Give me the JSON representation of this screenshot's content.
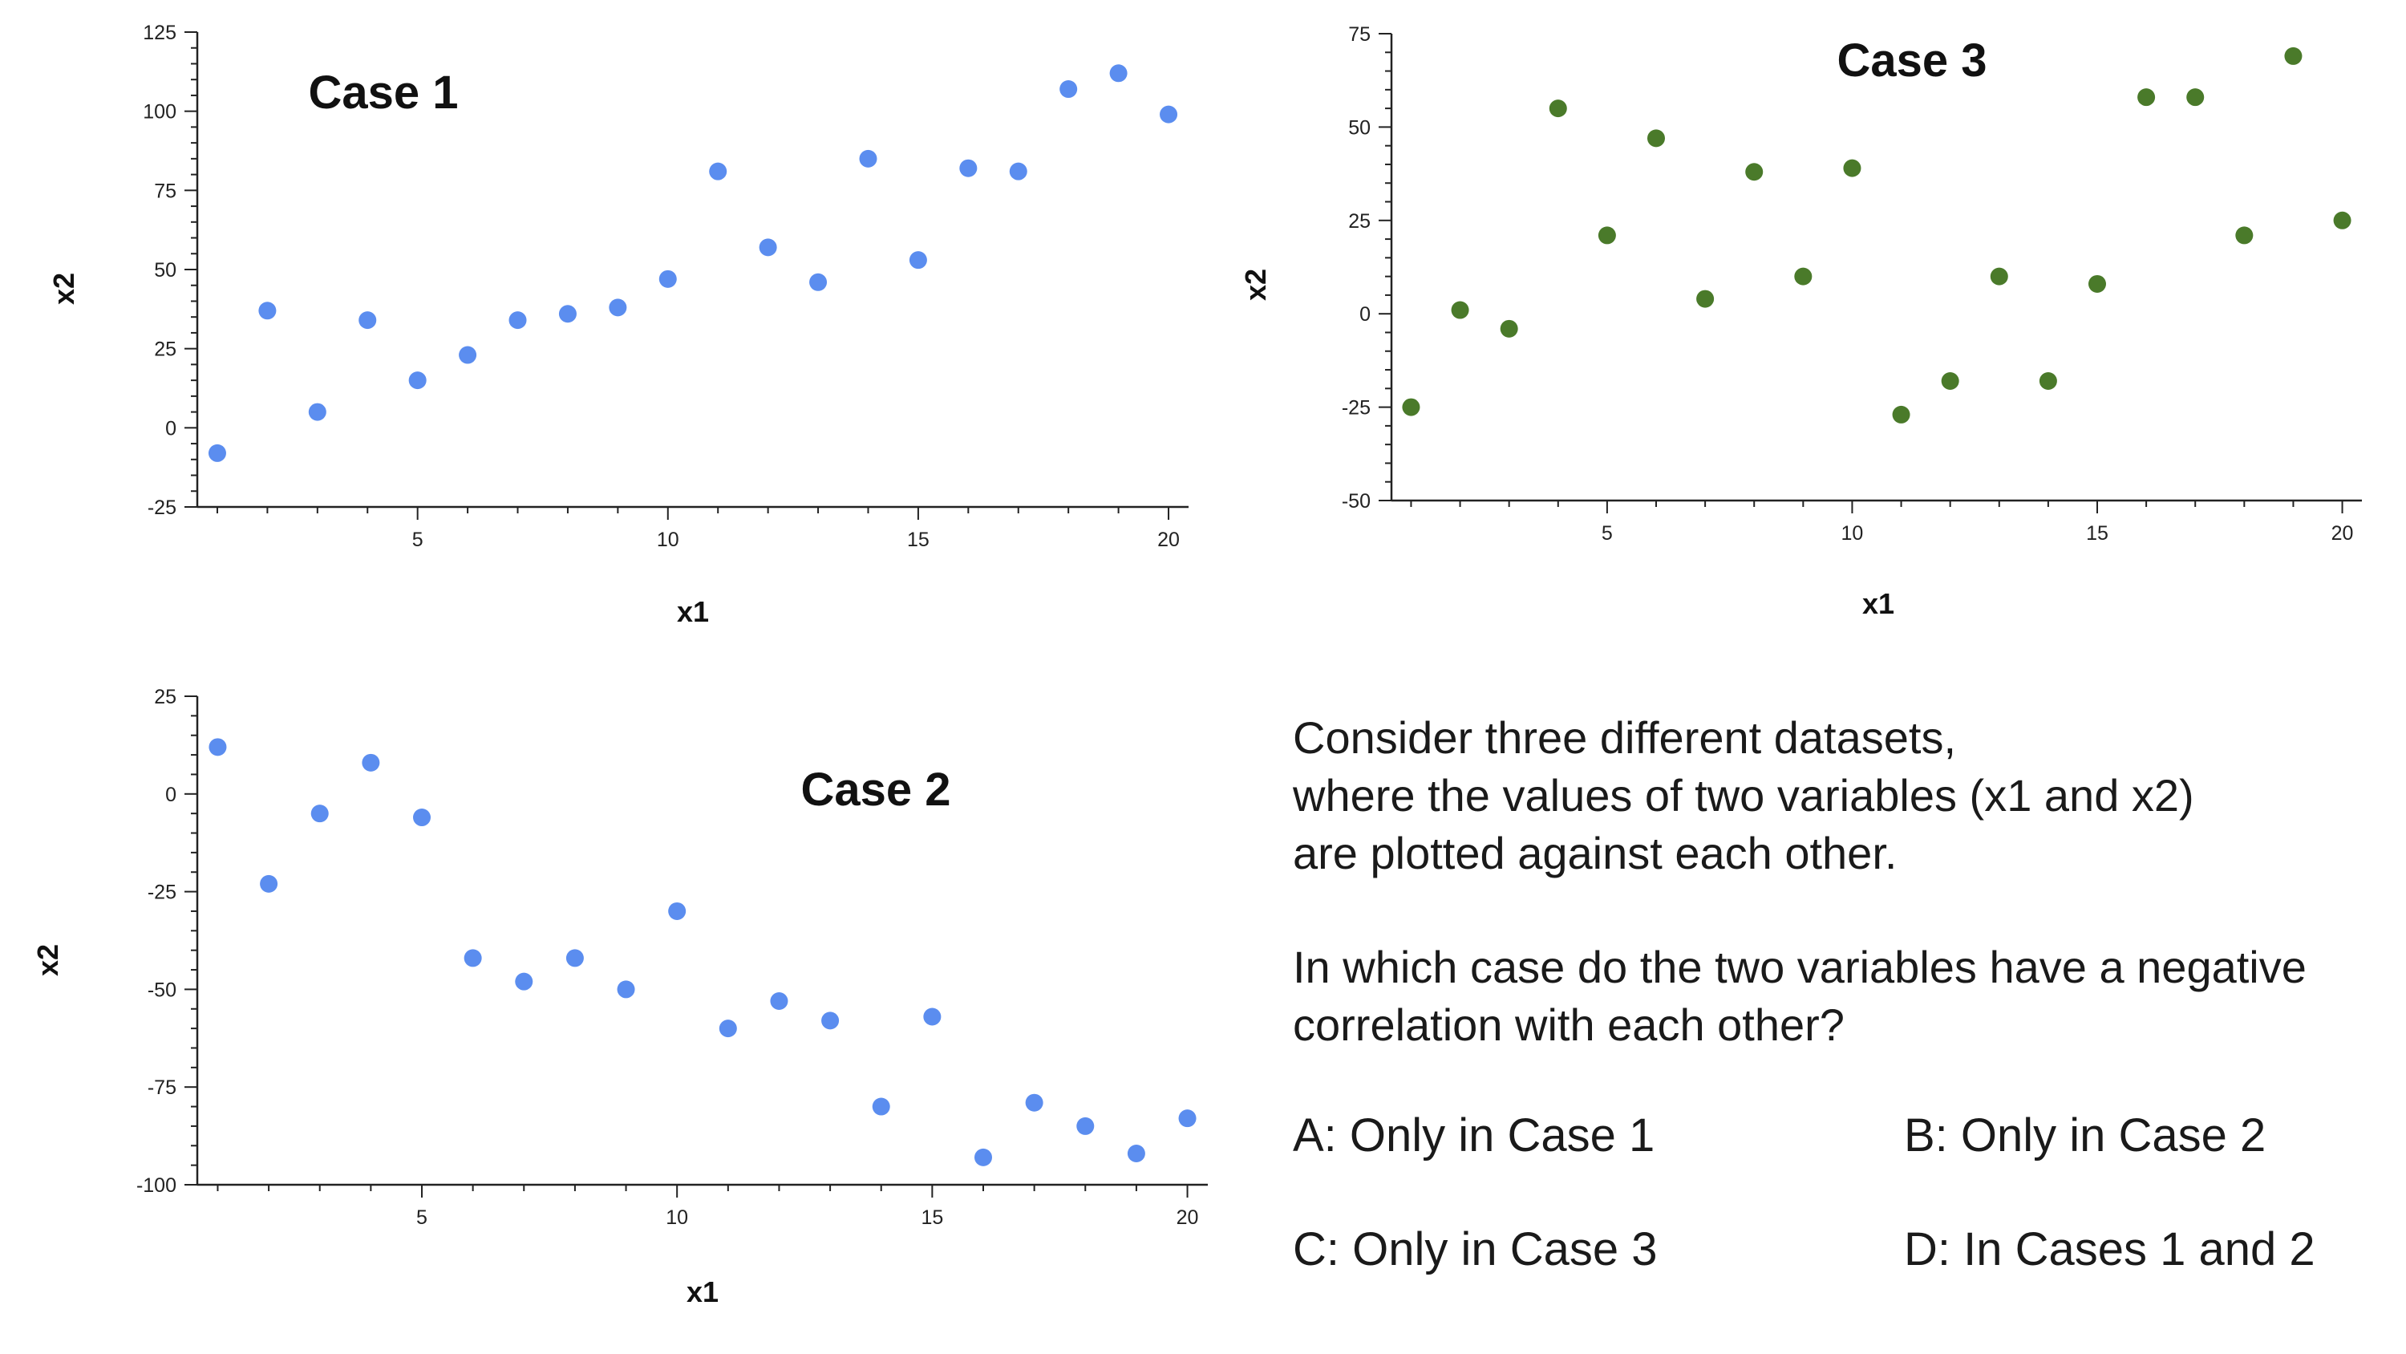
{
  "chart_data": [
    {
      "type": "scatter",
      "title": "Case 1",
      "xlabel": "x1",
      "ylabel": "x2",
      "xlim": [
        0.6,
        20.4
      ],
      "ylim": [
        -25,
        125
      ],
      "x_ticks": [
        5,
        10,
        15,
        20
      ],
      "y_ticks": [
        -25,
        0,
        25,
        50,
        75,
        100,
        125
      ],
      "color": "#5b8def",
      "x": [
        1,
        2,
        3,
        4,
        5,
        6,
        7,
        8,
        9,
        10,
        11,
        12,
        13,
        14,
        15,
        16,
        17,
        18,
        19,
        20
      ],
      "y": [
        -8,
        37,
        5,
        34,
        15,
        23,
        34,
        36,
        38,
        47,
        81,
        57,
        46,
        85,
        53,
        82,
        81,
        107,
        112,
        99
      ]
    },
    {
      "type": "scatter",
      "title": "Case 2",
      "xlabel": "x1",
      "ylabel": "x2",
      "xlim": [
        0.6,
        20.4
      ],
      "ylim": [
        -100,
        25
      ],
      "x_ticks": [
        5,
        10,
        15,
        20
      ],
      "y_ticks": [
        -100,
        -75,
        -50,
        -25,
        0,
        25
      ],
      "color": "#5b8def",
      "x": [
        1,
        2,
        3,
        4,
        5,
        6,
        7,
        8,
        9,
        10,
        11,
        12,
        13,
        14,
        15,
        16,
        17,
        18,
        19,
        20
      ],
      "y": [
        12,
        -23,
        -5,
        8,
        -6,
        -42,
        -48,
        -42,
        -50,
        -30,
        -60,
        -53,
        -58,
        -80,
        -57,
        -93,
        -79,
        -85,
        -92,
        -83
      ]
    },
    {
      "type": "scatter",
      "title": "Case 3",
      "xlabel": "x1",
      "ylabel": "x2",
      "xlim": [
        0.6,
        20.4
      ],
      "ylim": [
        -50,
        75
      ],
      "x_ticks": [
        5,
        10,
        15,
        20
      ],
      "y_ticks": [
        -50,
        -25,
        0,
        25,
        50,
        75
      ],
      "color": "#4a7a2a",
      "x": [
        1,
        2,
        3,
        4,
        5,
        6,
        7,
        8,
        9,
        10,
        11,
        12,
        13,
        14,
        15,
        16,
        17,
        18,
        19,
        20
      ],
      "y": [
        -25,
        1,
        -4,
        55,
        21,
        47,
        4,
        38,
        10,
        39,
        -27,
        -18,
        10,
        -18,
        8,
        58,
        58,
        21,
        69,
        25
      ]
    }
  ],
  "question": {
    "intro_lines": [
      "Consider three different datasets,",
      "where the values of two variables (x1 and x2)",
      "are plotted against each other."
    ],
    "prompt_lines": [
      "In which case do the two variables have a negative",
      "correlation with each other?"
    ]
  },
  "options": {
    "a": "A: Only in Case 1",
    "b": "B: Only in Case 2",
    "c": "C: Only in Case 3",
    "d": "D: In Cases 1 and 2"
  }
}
